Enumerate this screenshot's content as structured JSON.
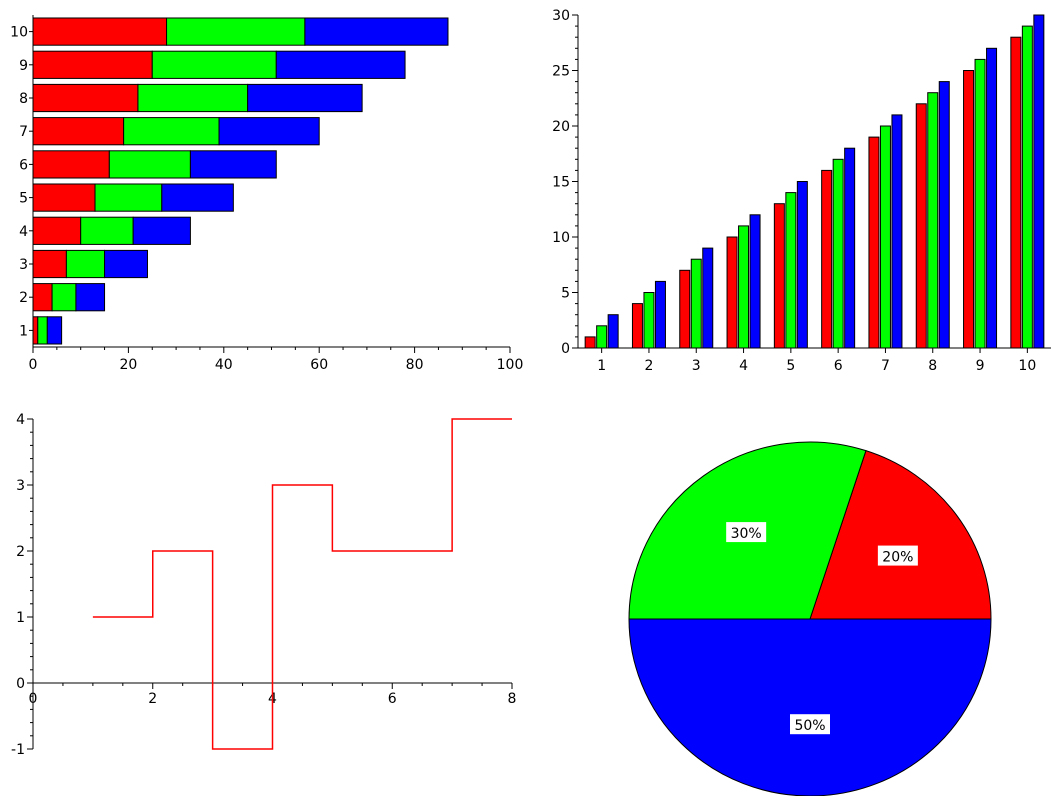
{
  "chart_data": [
    {
      "type": "bar",
      "orientation": "horizontal",
      "stacked": true,
      "categories": [
        "1",
        "2",
        "3",
        "4",
        "5",
        "6",
        "7",
        "8",
        "9",
        "10"
      ],
      "series": [
        {
          "values": [
            1,
            4,
            7,
            10,
            13,
            16,
            19,
            22,
            25,
            28
          ]
        },
        {
          "values": [
            2,
            5,
            8,
            11,
            14,
            17,
            20,
            23,
            26,
            29
          ]
        },
        {
          "values": [
            3,
            6,
            9,
            12,
            15,
            18,
            21,
            24,
            27,
            30
          ]
        }
      ],
      "colors": [
        "#ff0000",
        "#00ff00",
        "#0000ff"
      ],
      "xlim": [
        0,
        100
      ],
      "x_ticks": [
        "0",
        "20",
        "40",
        "60",
        "80",
        "100"
      ],
      "grid": false
    },
    {
      "type": "bar",
      "orientation": "vertical",
      "stacked": false,
      "categories": [
        "1",
        "2",
        "3",
        "4",
        "5",
        "6",
        "7",
        "8",
        "9",
        "10"
      ],
      "series": [
        {
          "values": [
            1,
            4,
            7,
            10,
            13,
            16,
            19,
            22,
            25,
            28
          ]
        },
        {
          "values": [
            2,
            5,
            8,
            11,
            14,
            17,
            20,
            23,
            26,
            29
          ]
        },
        {
          "values": [
            3,
            6,
            9,
            12,
            15,
            18,
            21,
            24,
            27,
            30
          ]
        }
      ],
      "colors": [
        "#ff0000",
        "#00ff00",
        "#0000ff"
      ],
      "ylim": [
        0,
        30
      ],
      "y_ticks": [
        "0",
        "5",
        "10",
        "15",
        "20",
        "25",
        "30"
      ],
      "grid": false
    },
    {
      "type": "line",
      "step": true,
      "x": [
        1,
        2,
        3,
        4,
        5,
        6,
        7,
        8
      ],
      "y": [
        1,
        2,
        -1,
        3,
        2,
        2,
        4,
        4
      ],
      "color": "#ff0000",
      "xlim": [
        0,
        8
      ],
      "ylim": [
        -1,
        4
      ],
      "x_ticks": [
        "0",
        "2",
        "4",
        "6",
        "8"
      ],
      "y_ticks": [
        "-1",
        "0",
        "1",
        "2",
        "3",
        "4"
      ],
      "grid": false
    },
    {
      "type": "pie",
      "slices": [
        {
          "label": "20%",
          "value": 20,
          "color": "#ff0000"
        },
        {
          "label": "30%",
          "value": 30,
          "color": "#00ff00"
        },
        {
          "label": "50%",
          "value": 50,
          "color": "#0000ff"
        }
      ]
    }
  ]
}
